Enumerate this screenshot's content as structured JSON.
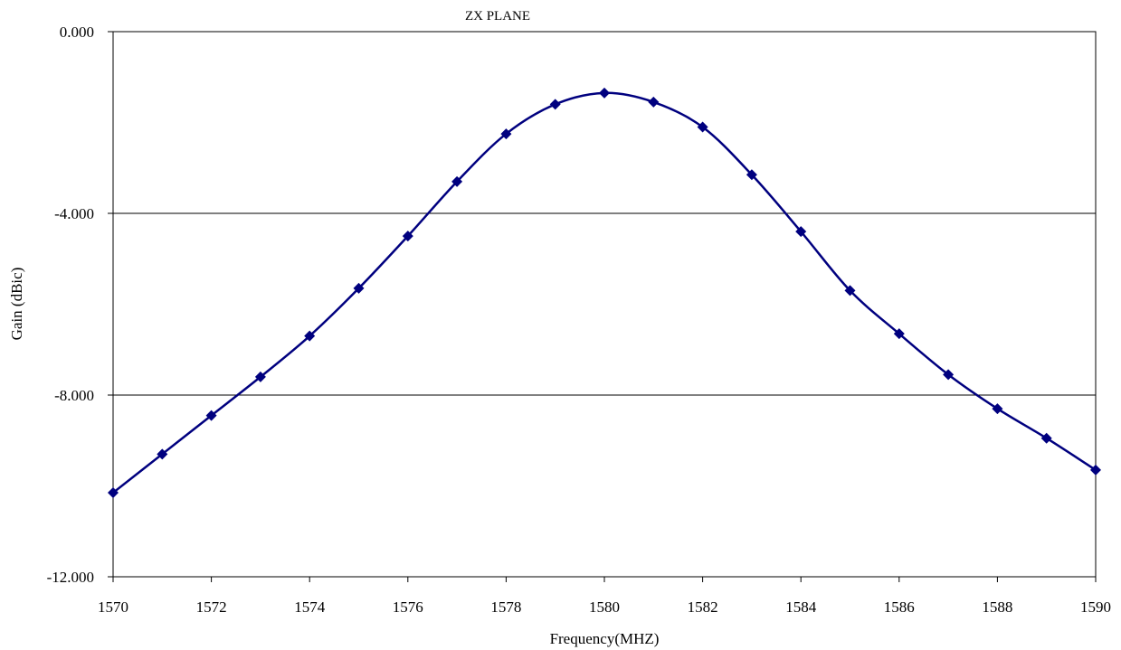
{
  "chart_data": {
    "type": "line",
    "title": "ZX PLANE",
    "xlabel": "Frequency(MHZ)",
    "ylabel": "Gain (dBic)",
    "xlim": [
      1570,
      1590
    ],
    "ylim": [
      -12,
      0
    ],
    "x_ticks": [
      "1570",
      "1572",
      "1574",
      "1576",
      "1578",
      "1580",
      "1582",
      "1584",
      "1586",
      "1588",
      "1590"
    ],
    "y_ticks": [
      "0.000",
      "-4.000",
      "-8.000",
      "-12.000"
    ],
    "grid": "horizontal",
    "legend": "none",
    "series": [
      {
        "x": [
          1570,
          1571,
          1572,
          1573,
          1574,
          1575,
          1576,
          1577,
          1578,
          1579,
          1580,
          1581,
          1582,
          1583,
          1584,
          1585,
          1586,
          1587,
          1588,
          1589,
          1590
        ],
        "values": [
          -10.15,
          -9.3,
          -8.45,
          -7.6,
          -6.7,
          -5.65,
          -4.5,
          -3.3,
          -2.25,
          -1.6,
          -1.35,
          -1.55,
          -2.1,
          -3.15,
          -4.4,
          -5.7,
          -6.65,
          -7.55,
          -8.3,
          -8.95,
          -9.65
        ],
        "color": "#00007f",
        "marker": "diamond"
      }
    ]
  }
}
